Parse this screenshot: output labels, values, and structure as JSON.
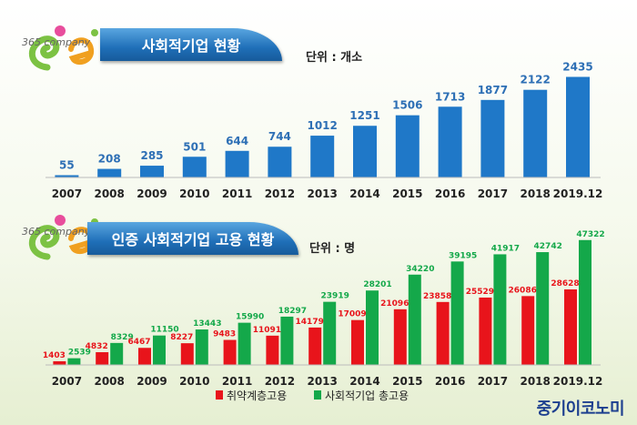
{
  "charts": {
    "top": {
      "title": "사회적기업 현황",
      "unit": "단위 : 개소"
    },
    "bottom": {
      "title": "인증 사회적기업 고용 현황",
      "unit": "단위 : 명"
    }
  },
  "logo_text": "365 company",
  "brand": "중기이코노미",
  "colors": {
    "blue": "#1f78c8",
    "red": "#e8141b",
    "green": "#14a84a",
    "blue_label": "#2d6fb5"
  },
  "chart_data": [
    {
      "type": "bar",
      "title": "사회적기업 현황",
      "unit": "단위 : 개소",
      "categories": [
        "2007",
        "2008",
        "2009",
        "2010",
        "2011",
        "2012",
        "2013",
        "2014",
        "2015",
        "2016",
        "2017",
        "2018",
        "2019.12"
      ],
      "values": [
        55,
        208,
        285,
        501,
        644,
        744,
        1012,
        1251,
        1506,
        1713,
        1877,
        2122,
        2435
      ],
      "ylim": [
        0,
        2600
      ],
      "grid": false
    },
    {
      "type": "bar",
      "title": "인증 사회적기업 고용 현황",
      "unit": "단위 : 명",
      "categories": [
        "2007",
        "2008",
        "2009",
        "2010",
        "2011",
        "2012",
        "2013",
        "2014",
        "2015",
        "2016",
        "2017",
        "2018",
        "2019.12"
      ],
      "series": [
        {
          "name": "취약계층고용",
          "values": [
            1403,
            4832,
            6467,
            8227,
            9483,
            11091,
            14179,
            17009,
            21096,
            23858,
            25529,
            26086,
            28628
          ]
        },
        {
          "name": "사회적기업 총고용",
          "values": [
            2539,
            8329,
            11150,
            13443,
            15990,
            18297,
            23919,
            28201,
            34220,
            39195,
            41917,
            42742,
            47322
          ]
        }
      ],
      "ylim": [
        0,
        50000
      ],
      "legend": "bottom-center",
      "grid": false
    }
  ]
}
